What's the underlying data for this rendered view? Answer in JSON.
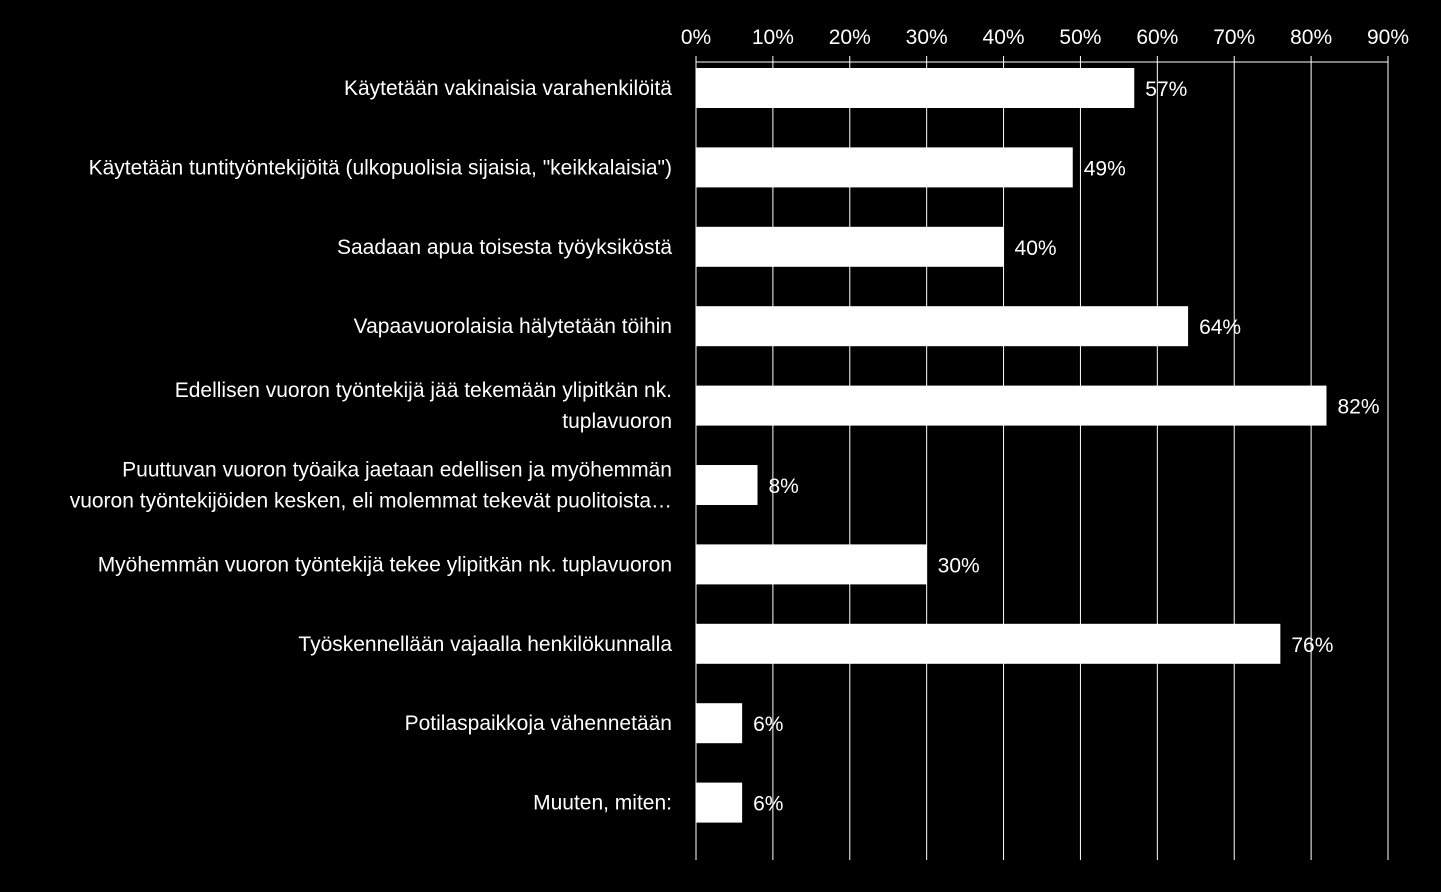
{
  "colors": {
    "background": "#000000",
    "bar": "#ffffff",
    "text": "#ffffff",
    "grid": "#ffffff"
  },
  "chart_data": {
    "type": "bar",
    "orientation": "horizontal",
    "title": "",
    "xlabel": "",
    "ylabel": "",
    "xlim": [
      0,
      90
    ],
    "grid": true,
    "axis_position": "top",
    "ticks": [
      "0%",
      "10%",
      "20%",
      "30%",
      "40%",
      "50%",
      "60%",
      "70%",
      "80%",
      "90%"
    ],
    "tick_values": [
      0,
      10,
      20,
      30,
      40,
      50,
      60,
      70,
      80,
      90
    ],
    "categories": [
      [
        "Käytetään vakinaisia varahenkilöitä"
      ],
      [
        "Käytetään tuntityöntekijöitä (ulkopuolisia sijaisia, \"keikkalaisia\")"
      ],
      [
        "Saadaan apua toisesta työyksiköstä"
      ],
      [
        "Vapaavuorolaisia hälytetään töihin"
      ],
      [
        "Edellisen vuoron työntekijä jää tekemään ylipitkän nk.",
        "tuplavuoron"
      ],
      [
        "Puuttuvan vuoron työaika jaetaan edellisen ja myöhemmän",
        "vuoron työntekijöiden kesken, eli molemmat tekevät puolitoista…"
      ],
      [
        "Myöhemmän vuoron työntekijä tekee ylipitkän nk. tuplavuoron"
      ],
      [
        "Työskennellään vajaalla henkilökunnalla"
      ],
      [
        "Potilaspaikkoja vähennetään"
      ],
      [
        "Muuten, miten:"
      ]
    ],
    "values": [
      57,
      49,
      40,
      64,
      82,
      8,
      30,
      76,
      6,
      6
    ],
    "data_labels": [
      "57%",
      "49%",
      "40%",
      "64%",
      "82%",
      "8%",
      "30%",
      "76%",
      "6%",
      "6%"
    ]
  }
}
